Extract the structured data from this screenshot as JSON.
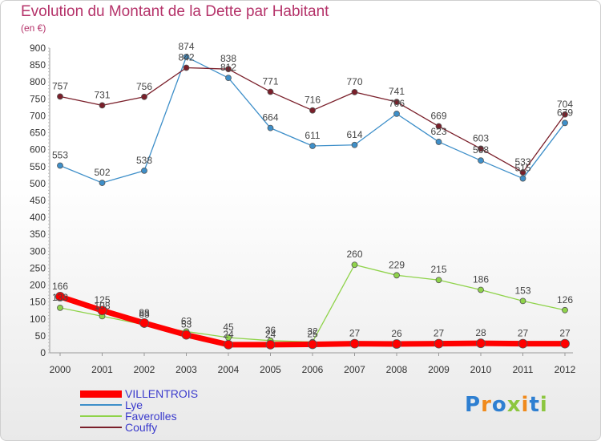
{
  "chart_data": {
    "type": "line",
    "title": "Evolution du Montant de la Dette par Habitant",
    "subtitle": "(en €)",
    "x": [
      "2000",
      "2001",
      "2002",
      "2003",
      "2004",
      "2005",
      "2006",
      "2007",
      "2008",
      "2009",
      "2010",
      "2011",
      "2012"
    ],
    "ylim": [
      0,
      900
    ],
    "yticks": [
      0,
      50,
      100,
      150,
      200,
      250,
      300,
      350,
      400,
      450,
      500,
      550,
      600,
      650,
      700,
      750,
      800,
      850,
      900
    ],
    "grid": false,
    "legend_position": "bottom-left",
    "series": [
      {
        "name": "VILLENTROIS",
        "color": "#ff0000",
        "values": [
          166,
          125,
          88,
          53,
          24,
          24,
          25,
          27,
          26,
          27,
          28,
          27,
          27
        ]
      },
      {
        "name": "Lye",
        "color": "#3e8fc9",
        "values": [
          553,
          502,
          538,
          874,
          812,
          664,
          611,
          614,
          706,
          623,
          568,
          515,
          679
        ]
      },
      {
        "name": "Faverolles",
        "color": "#8fd34a",
        "values": [
          133,
          108,
          83,
          63,
          45,
          36,
          32,
          260,
          229,
          215,
          186,
          153,
          126
        ]
      },
      {
        "name": "Couffy",
        "color": "#7a1f2a",
        "values": [
          757,
          731,
          756,
          842,
          838,
          771,
          716,
          770,
          741,
          669,
          603,
          533,
          704
        ]
      }
    ]
  },
  "logo": {
    "text": "Proxiti",
    "colors": [
      "#2e7fd1",
      "#f08a1c",
      "#2e7fd1",
      "#8cc63f",
      "#f08a1c",
      "#2e7fd1",
      "#8cc63f"
    ]
  }
}
